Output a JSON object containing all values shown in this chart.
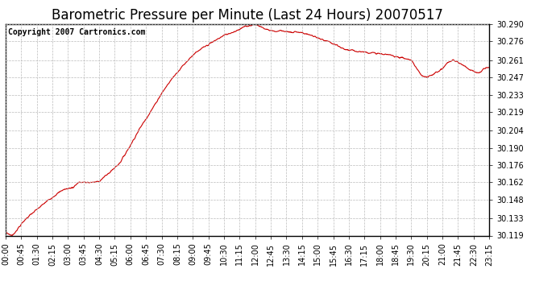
{
  "title": "Barometric Pressure per Minute (Last 24 Hours) 20070517",
  "copyright_text": "Copyright 2007 Cartronics.com",
  "line_color": "#cc0000",
  "background_color": "#ffffff",
  "plot_bg_color": "#ffffff",
  "grid_color": "#bbbbbb",
  "ylim": [
    30.119,
    30.29
  ],
  "yticks": [
    30.119,
    30.133,
    30.148,
    30.162,
    30.176,
    30.19,
    30.204,
    30.219,
    30.233,
    30.247,
    30.261,
    30.276,
    30.29
  ],
  "xtick_labels": [
    "00:00",
    "00:45",
    "01:30",
    "02:15",
    "03:00",
    "03:45",
    "04:30",
    "05:15",
    "06:00",
    "06:45",
    "07:30",
    "08:15",
    "09:00",
    "09:45",
    "10:30",
    "11:15",
    "12:00",
    "12:45",
    "13:30",
    "14:15",
    "15:00",
    "15:45",
    "16:30",
    "17:15",
    "18:00",
    "18:45",
    "19:30",
    "20:15",
    "21:00",
    "21:45",
    "22:30",
    "23:15"
  ],
  "title_fontsize": 12,
  "tick_fontsize": 7,
  "copyright_fontsize": 7,
  "anchors_t": [
    0.0,
    0.17,
    0.33,
    0.75,
    1.0,
    1.5,
    2.0,
    2.25,
    2.5,
    2.75,
    3.0,
    3.25,
    3.5,
    3.75,
    4.0,
    4.25,
    4.5,
    5.0,
    5.5,
    6.0,
    6.5,
    7.0,
    7.5,
    8.0,
    8.5,
    9.0,
    9.5,
    10.0,
    10.5,
    11.0,
    11.25,
    11.5,
    11.75,
    12.0,
    12.25,
    12.5,
    13.0,
    13.25,
    13.5,
    13.75,
    14.0,
    14.25,
    14.5,
    15.0,
    15.25,
    15.5,
    15.75,
    16.0,
    16.25,
    16.5,
    17.0,
    17.5,
    18.0,
    18.5,
    19.0,
    19.5,
    20.0,
    20.25,
    20.5,
    21.0,
    21.25,
    21.5,
    21.75,
    22.0,
    22.25,
    22.5,
    22.75,
    23.0,
    23.25
  ],
  "anchors_p": [
    30.122,
    30.12,
    30.119,
    30.128,
    30.133,
    30.14,
    30.147,
    30.15,
    30.153,
    30.156,
    30.157,
    30.158,
    30.162,
    30.162,
    30.162,
    30.162,
    30.163,
    30.17,
    30.178,
    30.192,
    30.207,
    30.22,
    30.234,
    30.246,
    30.256,
    30.265,
    30.271,
    30.276,
    30.281,
    30.284,
    30.286,
    30.288,
    30.289,
    30.29,
    30.288,
    30.286,
    30.284,
    30.285,
    30.284,
    30.283,
    30.284,
    30.283,
    30.282,
    30.279,
    30.277,
    30.276,
    30.274,
    30.272,
    30.27,
    30.269,
    30.268,
    30.267,
    30.266,
    30.265,
    30.263,
    30.261,
    30.248,
    30.247,
    30.249,
    30.254,
    30.259,
    30.261,
    30.259,
    30.257,
    30.254,
    30.252,
    30.25,
    30.254,
    30.255
  ]
}
